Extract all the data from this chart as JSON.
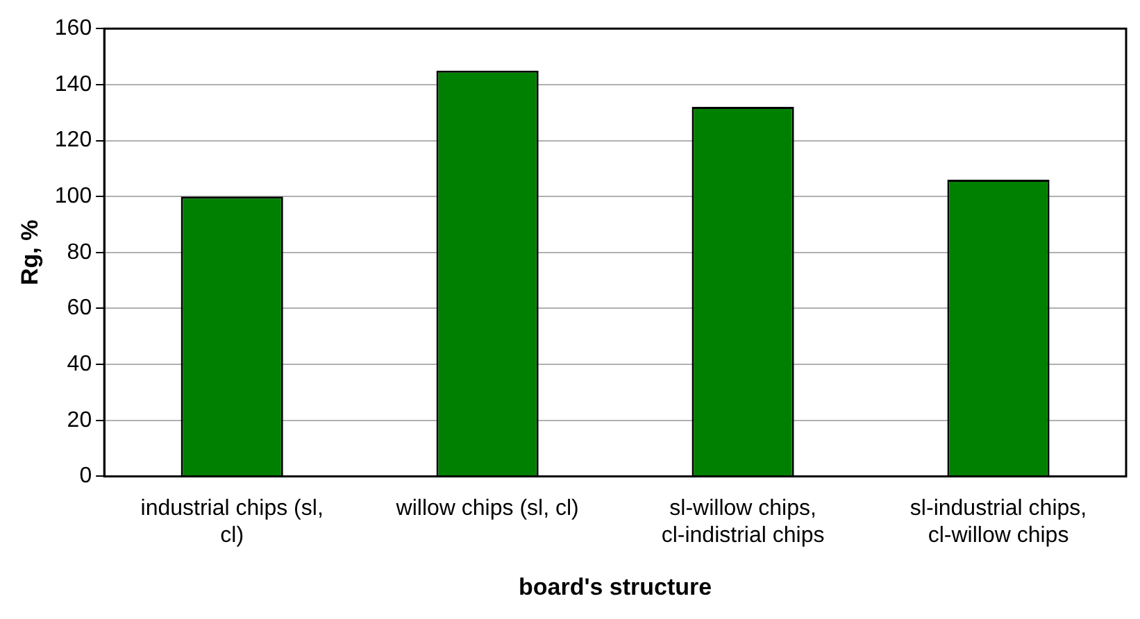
{
  "chart_data": {
    "type": "bar",
    "xlabel": "board's structure",
    "ylabel": "Rg, %",
    "categories": [
      "industrial chips (sl, cl)",
      "willow chips (sl, cl)",
      "sl-willow chips, cl-indistrial chips",
      "sl-industrial chips, cl-willow chips"
    ],
    "values": [
      100,
      145,
      132,
      106
    ],
    "color": "#008000",
    "ylim": [
      0,
      160
    ],
    "yticks": [
      0,
      20,
      40,
      60,
      80,
      100,
      120,
      140,
      160
    ],
    "grid": "y",
    "legend": false
  }
}
